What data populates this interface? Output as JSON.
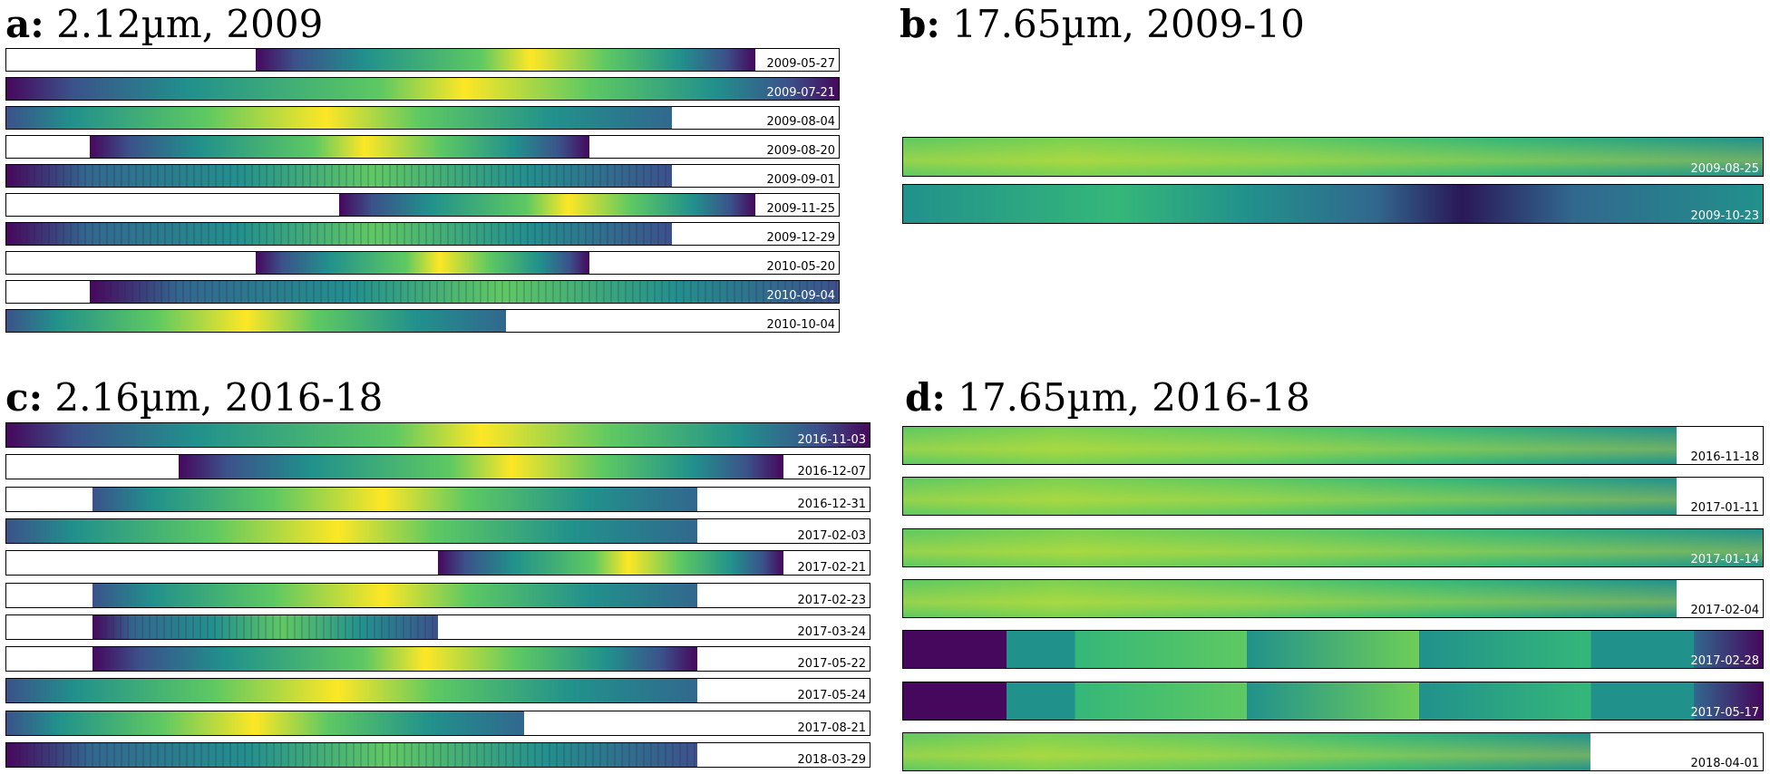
{
  "colors": {
    "dark": "#46085c",
    "teal": "#21918c",
    "green": "#5ec962",
    "yellow": "#fde725"
  },
  "panels": [
    {
      "id": "a",
      "letter": "a:",
      "text": " 2.12µm, 2009",
      "strips": [
        {
          "date": "2009-05-27",
          "date_color": "#000000",
          "coverage": [
            0.3,
            0.9
          ],
          "style": "dark-ends"
        },
        {
          "date": "2009-07-21",
          "date_color": "#ffffff",
          "coverage": [
            0.0,
            1.0
          ],
          "style": "dark-ends"
        },
        {
          "date": "2009-08-04",
          "date_color": "#000000",
          "coverage": [
            0.0,
            0.8
          ],
          "style": "bright"
        },
        {
          "date": "2009-08-20",
          "date_color": "#000000",
          "coverage": [
            0.1,
            0.7
          ],
          "style": "dark-ends"
        },
        {
          "date": "2009-09-01",
          "date_color": "#000000",
          "coverage": [
            0.0,
            0.8
          ],
          "style": "noisy"
        },
        {
          "date": "2009-11-25",
          "date_color": "#000000",
          "coverage": [
            0.4,
            0.9
          ],
          "style": "dark-ends"
        },
        {
          "date": "2009-12-29",
          "date_color": "#000000",
          "coverage": [
            0.0,
            0.8
          ],
          "style": "noisy"
        },
        {
          "date": "2010-05-20",
          "date_color": "#000000",
          "coverage": [
            0.3,
            0.7
          ],
          "style": "dark-ends"
        },
        {
          "date": "2010-09-04",
          "date_color": "#ffffff",
          "coverage": [
            0.1,
            1.0
          ],
          "style": "noisy"
        },
        {
          "date": "2010-10-04",
          "date_color": "#000000",
          "coverage": [
            0.0,
            0.6
          ],
          "style": "bright"
        }
      ]
    },
    {
      "id": "b",
      "letter": "b:",
      "text": " 17.65µm, 2009-10",
      "strips": [
        {
          "date": "2009-08-25",
          "date_color": "#ffffff",
          "coverage": [
            0.0,
            1.0
          ],
          "style": "smooth"
        },
        {
          "date": "2009-10-23",
          "date_color": "#ffffff",
          "coverage": [
            0.0,
            1.0
          ],
          "style": "fade"
        }
      ]
    },
    {
      "id": "c",
      "letter": "c:",
      "text": " 2.16µm, 2016-18",
      "strips": [
        {
          "date": "2016-11-03",
          "date_color": "#ffffff",
          "coverage": [
            0.0,
            1.0
          ],
          "style": "dark-ends"
        },
        {
          "date": "2016-12-07",
          "date_color": "#000000",
          "coverage": [
            0.2,
            0.9
          ],
          "style": "dark-ends"
        },
        {
          "date": "2016-12-31",
          "date_color": "#000000",
          "coverage": [
            0.1,
            0.8
          ],
          "style": "bright"
        },
        {
          "date": "2017-02-03",
          "date_color": "#000000",
          "coverage": [
            0.0,
            0.8
          ],
          "style": "bright"
        },
        {
          "date": "2017-02-21",
          "date_color": "#000000",
          "coverage": [
            0.5,
            0.9
          ],
          "style": "dark-ends"
        },
        {
          "date": "2017-02-23",
          "date_color": "#000000",
          "coverage": [
            0.1,
            0.8
          ],
          "style": "bright"
        },
        {
          "date": "2017-03-24",
          "date_color": "#000000",
          "coverage": [
            0.1,
            0.5
          ],
          "style": "noisy"
        },
        {
          "date": "2017-05-22",
          "date_color": "#000000",
          "coverage": [
            0.1,
            0.8
          ],
          "style": "dark-ends"
        },
        {
          "date": "2017-05-24",
          "date_color": "#000000",
          "coverage": [
            0.0,
            0.8
          ],
          "style": "bright"
        },
        {
          "date": "2017-08-21",
          "date_color": "#000000",
          "coverage": [
            0.0,
            0.6
          ],
          "style": "bright"
        },
        {
          "date": "2018-03-29",
          "date_color": "#000000",
          "coverage": [
            0.0,
            0.8
          ],
          "style": "noisy"
        }
      ]
    },
    {
      "id": "d",
      "letter": "d:",
      "text": " 17.65µm, 2016-18",
      "strips": [
        {
          "date": "2016-11-18",
          "date_color": "#000000",
          "coverage": [
            0.0,
            0.9
          ],
          "style": "smooth"
        },
        {
          "date": "2017-01-11",
          "date_color": "#000000",
          "coverage": [
            0.0,
            0.9
          ],
          "style": "smooth"
        },
        {
          "date": "2017-01-14",
          "date_color": "#ffffff",
          "coverage": [
            0.0,
            1.0
          ],
          "style": "smooth"
        },
        {
          "date": "2017-02-04",
          "date_color": "#000000",
          "coverage": [
            0.0,
            0.9
          ],
          "style": "smooth"
        },
        {
          "date": "2017-02-28",
          "date_color": "#ffffff",
          "coverage": [
            0.0,
            1.0
          ],
          "style": "blocky"
        },
        {
          "date": "2017-05-17",
          "date_color": "#ffffff",
          "coverage": [
            0.0,
            1.0
          ],
          "style": "blocky"
        },
        {
          "date": "2018-04-01",
          "date_color": "#000000",
          "coverage": [
            0.0,
            0.8
          ],
          "style": "smooth"
        }
      ]
    }
  ]
}
